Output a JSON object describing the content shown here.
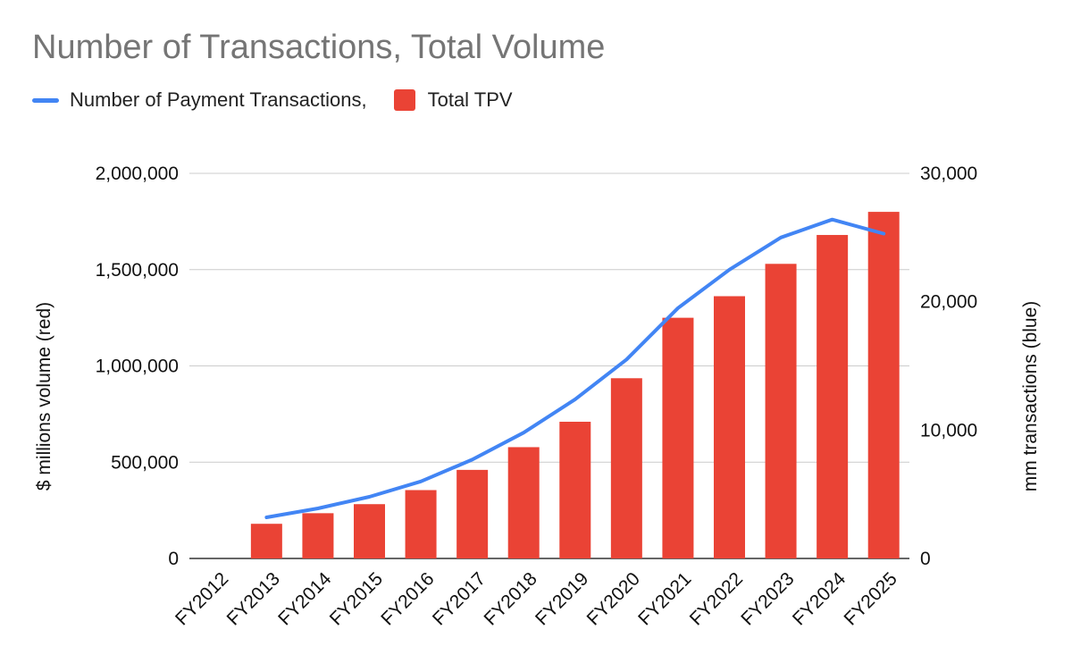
{
  "chart_data": {
    "type": "bar+line",
    "title": "Number of Transactions, Total Volume",
    "categories": [
      "FY2012",
      "FY2013",
      "FY2014",
      "FY2015",
      "FY2016",
      "FY2017",
      "FY2018",
      "FY2019",
      "FY2020",
      "FY2021",
      "FY2022",
      "FY2023",
      "FY2024",
      "FY2025"
    ],
    "series": [
      {
        "name": "Total TPV",
        "type": "bar",
        "axis": "left",
        "color": "#ea4335",
        "values": [
          0,
          180000,
          235000,
          282000,
          355000,
          460000,
          578000,
          710000,
          936000,
          1250000,
          1362000,
          1530000,
          1680000,
          1800000
        ]
      },
      {
        "name": "Number of Payment Transactions,",
        "type": "line",
        "axis": "right",
        "color": "#4285f4",
        "values": [
          null,
          3200,
          3900,
          4800,
          6000,
          7700,
          9800,
          12400,
          15500,
          19500,
          22500,
          25000,
          26400,
          25300
        ]
      }
    ],
    "y_left": {
      "label": "$ millions volume (red)",
      "range": [
        0,
        2000000
      ],
      "ticks": [
        0,
        500000,
        1000000,
        1500000,
        2000000
      ],
      "tick_labels": [
        "0",
        "500,000",
        "1,000,000",
        "1,500,000",
        "2,000,000"
      ]
    },
    "y_right": {
      "label": "mm transactions (blue)",
      "range": [
        0,
        30000
      ],
      "ticks": [
        0,
        10000,
        20000,
        30000
      ],
      "tick_labels": [
        "0",
        "10,000",
        "20,000",
        "30,000"
      ]
    },
    "grid": true,
    "legend_position": "top-left"
  }
}
